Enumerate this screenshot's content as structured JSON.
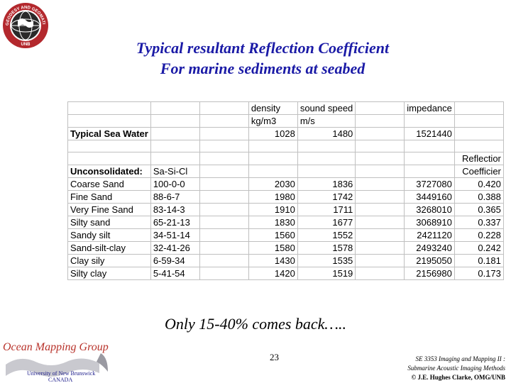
{
  "logo": {
    "ring_text": "GEODESY AND GEOMATICS ENGINEERING",
    "bottom_text": "UNB"
  },
  "title": {
    "line1": "Typical resultant Reflection Coefficient",
    "line2": "For marine sediments at seabed"
  },
  "colors": {
    "title": "#1a1aa6",
    "omg_title": "#b8322a",
    "grid": "#c0c0c0"
  },
  "table": {
    "rows": [
      [
        {
          "t": ""
        },
        {
          "t": ""
        },
        {
          "t": ""
        },
        {
          "t": "density"
        },
        {
          "t": "sound speed"
        },
        {
          "t": ""
        },
        {
          "t": "impedance"
        },
        {
          "t": ""
        }
      ],
      [
        {
          "t": ""
        },
        {
          "t": ""
        },
        {
          "t": ""
        },
        {
          "t": "kg/m3"
        },
        {
          "t": "m/s"
        },
        {
          "t": ""
        },
        {
          "t": ""
        },
        {
          "t": ""
        }
      ],
      [
        {
          "t": "Typical Sea Water",
          "b": true
        },
        {
          "t": ""
        },
        {
          "t": ""
        },
        {
          "t": "1028",
          "n": true
        },
        {
          "t": "1480",
          "n": true
        },
        {
          "t": ""
        },
        {
          "t": "1521440",
          "n": true
        },
        {
          "t": ""
        }
      ],
      [
        {
          "t": ""
        },
        {
          "t": ""
        },
        {
          "t": ""
        },
        {
          "t": ""
        },
        {
          "t": ""
        },
        {
          "t": ""
        },
        {
          "t": ""
        },
        {
          "t": ""
        }
      ],
      [
        {
          "t": ""
        },
        {
          "t": ""
        },
        {
          "t": ""
        },
        {
          "t": ""
        },
        {
          "t": ""
        },
        {
          "t": ""
        },
        {
          "t": ""
        },
        {
          "t": "Reflectior",
          "n": true
        }
      ],
      [
        {
          "t": "Unconsolidated:",
          "b": true
        },
        {
          "t": "Sa-Si-Cl"
        },
        {
          "t": ""
        },
        {
          "t": ""
        },
        {
          "t": ""
        },
        {
          "t": ""
        },
        {
          "t": ""
        },
        {
          "t": "Coefficier",
          "n": true
        }
      ],
      [
        {
          "t": "Coarse Sand"
        },
        {
          "t": "100-0-0"
        },
        {
          "t": ""
        },
        {
          "t": "2030",
          "n": true
        },
        {
          "t": "1836",
          "n": true
        },
        {
          "t": ""
        },
        {
          "t": "3727080",
          "n": true
        },
        {
          "t": "0.420",
          "n": true
        }
      ],
      [
        {
          "t": "Fine Sand"
        },
        {
          "t": "88-6-7"
        },
        {
          "t": ""
        },
        {
          "t": "1980",
          "n": true
        },
        {
          "t": "1742",
          "n": true
        },
        {
          "t": ""
        },
        {
          "t": "3449160",
          "n": true
        },
        {
          "t": "0.388",
          "n": true
        }
      ],
      [
        {
          "t": "Very Fine Sand"
        },
        {
          "t": "83-14-3"
        },
        {
          "t": ""
        },
        {
          "t": "1910",
          "n": true
        },
        {
          "t": "1711",
          "n": true
        },
        {
          "t": ""
        },
        {
          "t": "3268010",
          "n": true
        },
        {
          "t": "0.365",
          "n": true
        }
      ],
      [
        {
          "t": "Silty sand"
        },
        {
          "t": "65-21-13"
        },
        {
          "t": ""
        },
        {
          "t": "1830",
          "n": true
        },
        {
          "t": "1677",
          "n": true
        },
        {
          "t": ""
        },
        {
          "t": "3068910",
          "n": true
        },
        {
          "t": "0.337",
          "n": true
        }
      ],
      [
        {
          "t": "Sandy silt"
        },
        {
          "t": "34-51-14"
        },
        {
          "t": ""
        },
        {
          "t": "1560",
          "n": true
        },
        {
          "t": "1552",
          "n": true
        },
        {
          "t": ""
        },
        {
          "t": "2421120",
          "n": true
        },
        {
          "t": "0.228",
          "n": true
        }
      ],
      [
        {
          "t": "Sand-silt-clay"
        },
        {
          "t": "32-41-26"
        },
        {
          "t": ""
        },
        {
          "t": "1580",
          "n": true
        },
        {
          "t": "1578",
          "n": true
        },
        {
          "t": ""
        },
        {
          "t": "2493240",
          "n": true
        },
        {
          "t": "0.242",
          "n": true
        }
      ],
      [
        {
          "t": "Clay sily"
        },
        {
          "t": "6-59-34"
        },
        {
          "t": ""
        },
        {
          "t": "1430",
          "n": true
        },
        {
          "t": "1535",
          "n": true
        },
        {
          "t": ""
        },
        {
          "t": "2195050",
          "n": true
        },
        {
          "t": "0.181",
          "n": true
        }
      ],
      [
        {
          "t": "Silty clay"
        },
        {
          "t": "5-41-54"
        },
        {
          "t": ""
        },
        {
          "t": "1420",
          "n": true
        },
        {
          "t": "1519",
          "n": true
        },
        {
          "t": ""
        },
        {
          "t": "2156980",
          "n": true
        },
        {
          "t": "0.173",
          "n": true
        }
      ]
    ]
  },
  "caption": "Only 15-40% comes back…..",
  "omg": {
    "title": "Ocean Mapping Group",
    "university": "University of New Brunswick",
    "country": "CANADA"
  },
  "page_number": "23",
  "footer": {
    "line1": "SE 3353 Imaging and Mapping II :",
    "line2": "Submarine Acoustic Imaging Methods",
    "line3": "© J.E. Hughes Clarke, OMG/UNB"
  }
}
